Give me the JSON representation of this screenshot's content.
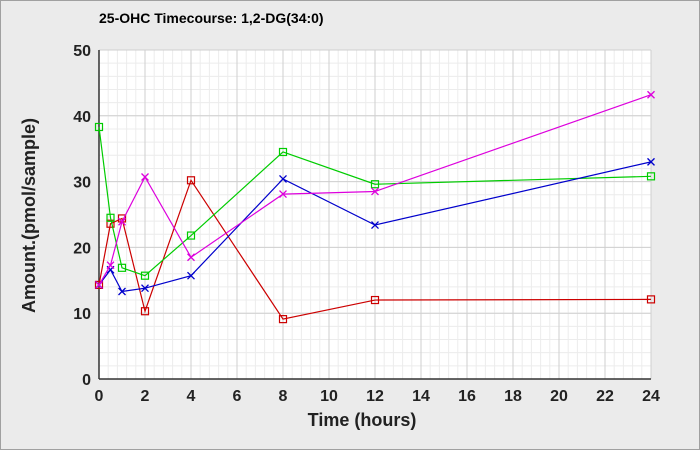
{
  "chart_data": {
    "type": "line",
    "title": "25-OHC Timecourse: 1,2-DG(34:0)",
    "xlabel": "Time (hours)",
    "ylabel": "Amount.(pmol/sample)",
    "xlim": [
      0,
      24
    ],
    "ylim": [
      0,
      50
    ],
    "x_ticks": [
      0,
      2,
      4,
      6,
      8,
      10,
      12,
      14,
      16,
      18,
      20,
      22,
      24
    ],
    "y_ticks": [
      0,
      10,
      20,
      30,
      40,
      50
    ],
    "grid": true,
    "x": [
      0,
      0.5,
      1,
      2,
      4,
      8,
      12,
      24
    ],
    "series": [
      {
        "color": "#cc0000",
        "marker": "square",
        "values": [
          14.3,
          23.6,
          24.4,
          10.3,
          30.2,
          9.1,
          12.0,
          12.1
        ]
      },
      {
        "color": "#00cc00",
        "marker": "square",
        "values": [
          38.3,
          24.5,
          16.9,
          15.7,
          21.8,
          34.5,
          29.6,
          30.8
        ]
      },
      {
        "color": "#0000cc",
        "marker": "x",
        "values": [
          14.3,
          16.6,
          13.3,
          13.8,
          15.7,
          30.4,
          23.4,
          33.0
        ]
      },
      {
        "color": "#dd00dd",
        "marker": "x",
        "values": [
          14.3,
          17.3,
          23.9,
          30.7,
          18.5,
          28.1,
          28.5,
          43.2
        ]
      }
    ]
  }
}
